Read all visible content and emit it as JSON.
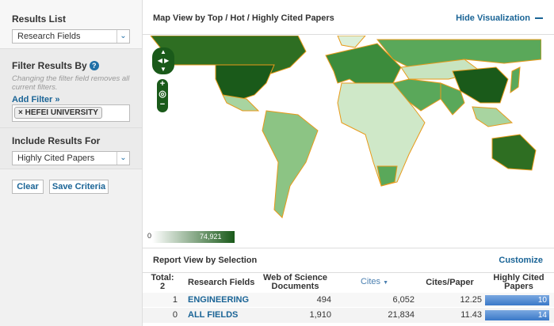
{
  "sidebar": {
    "results_list": {
      "label": "Results List",
      "value": "Research Fields"
    },
    "filter": {
      "label": "Filter Results By",
      "note": "Changing the filter field removes all current filters.",
      "add_filter": "Add Filter »",
      "tags": [
        "HEFEI UNIVERSITY"
      ]
    },
    "include": {
      "label": "Include Results For",
      "value": "Highly Cited Papers"
    },
    "clear": "Clear",
    "save": "Save Criteria"
  },
  "map": {
    "title": "Map View by Top / Hot / Highly Cited Papers",
    "hide": "Hide Visualization",
    "legend_min": "0",
    "legend_max": "74,921",
    "colors": {
      "darkest": "#1a5a1a",
      "dark": "#2e7d2e",
      "mid": "#5aa85a",
      "light": "#a8d4a0",
      "lightest": "#dcefd8",
      "border": "#e89a1a"
    }
  },
  "report": {
    "title": "Report View by Selection",
    "customize": "Customize",
    "columns": [
      "Total:\n2",
      "Research Fields",
      "Web of Science Documents",
      "Cites",
      "Cites/Paper",
      "Highly Cited Papers"
    ],
    "total_label": "Total:",
    "total": "2",
    "rows": [
      {
        "rank": "1",
        "field": "ENGINEERING",
        "docs": "494",
        "cites": "6,052",
        "cpp": "12.25",
        "hcp": "10"
      },
      {
        "rank": "0",
        "field": "ALL FIELDS",
        "docs": "1,910",
        "cites": "21,834",
        "cpp": "11.43",
        "hcp": "14"
      }
    ]
  }
}
